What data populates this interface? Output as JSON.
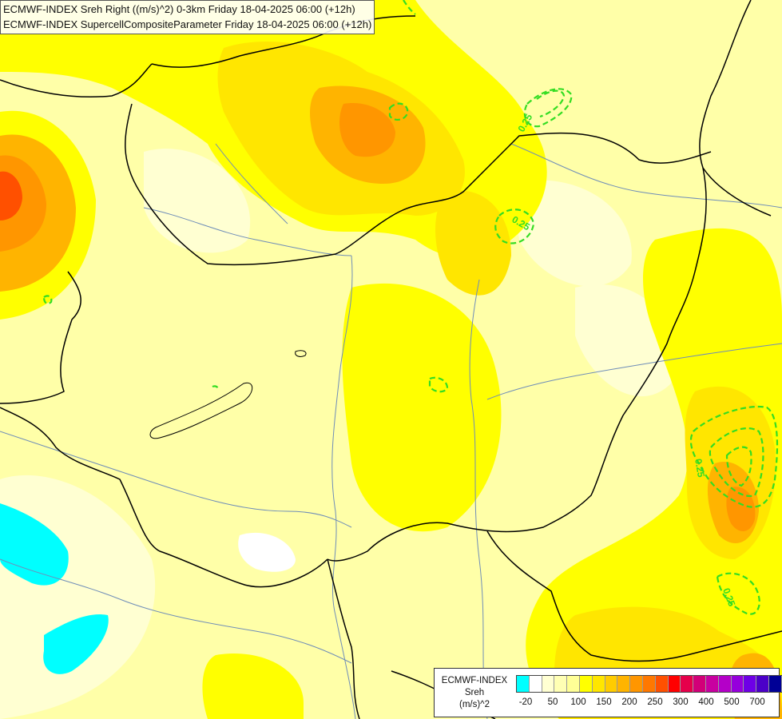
{
  "title": {
    "line1": "ECMWF-INDEX Sreh Right ((m/s)^2) 0-3km Friday 18-04-2025 06:00 (+12h)",
    "line2": "ECMWF-INDEX SupercellCompositeParameter Friday 18-04-2025 06:00 (+12h)"
  },
  "contour_labels": [
    "0.25",
    "0.25",
    "0.25",
    "0.25"
  ],
  "legend": {
    "line1": "ECMWF-INDEX",
    "line2": "Sreh",
    "line3": "(m/s)^2",
    "colors": [
      "#00ffff",
      "#ffffff",
      "#ffffd2",
      "#ffffb4",
      "#ffff96",
      "#ffff00",
      "#ffe600",
      "#ffcc00",
      "#ffb400",
      "#ff9600",
      "#ff7800",
      "#ff5000",
      "#ff0000",
      "#e6004b",
      "#d20078",
      "#c800a0",
      "#b400c8",
      "#9600dc",
      "#6e00e6",
      "#4b00c8",
      "#000096"
    ],
    "ticks": [
      "-20",
      "50",
      "100",
      "150",
      "200",
      "250",
      "300",
      "400",
      "500",
      "700"
    ]
  },
  "colors": {
    "field_base": "#ffffa8",
    "field_light": "#ffffd2",
    "field_yellow": "#ffff00",
    "field_gold": "#ffe600",
    "field_orange": "#ffb400",
    "field_deep_orange": "#ff9600",
    "field_red": "#ff5000",
    "low_values": "#00ffff",
    "contour": "#33dd22",
    "border_line": "#000000",
    "river_line": "#6f8db8"
  }
}
